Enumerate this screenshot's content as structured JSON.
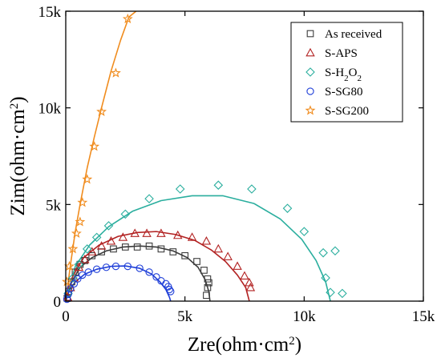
{
  "chart_data": {
    "type": "scatter",
    "xlabel": "Zre(ohm·cm²)",
    "ylabel": "Zim(ohm·cm²)",
    "xlim": [
      0,
      15000
    ],
    "ylim": [
      0,
      15000
    ],
    "xticks": [
      0,
      5000,
      10000,
      15000
    ],
    "yticks": [
      0,
      5000,
      10000,
      15000
    ],
    "xtick_labels": [
      "0",
      "5k",
      "10k",
      "15k"
    ],
    "ytick_labels": [
      "0",
      "5k",
      "10k",
      "15k"
    ],
    "legend_position": "top-right",
    "grid": false,
    "series": [
      {
        "name": "As received",
        "color": "#3c3c3c",
        "marker": "square",
        "points": [
          [
            60,
            150
          ],
          [
            120,
            500
          ],
          [
            250,
            1000
          ],
          [
            400,
            1500
          ],
          [
            600,
            1900
          ],
          [
            800,
            2100
          ],
          [
            1100,
            2350
          ],
          [
            1500,
            2550
          ],
          [
            2000,
            2700
          ],
          [
            2500,
            2800
          ],
          [
            3000,
            2800
          ],
          [
            3500,
            2850
          ],
          [
            4000,
            2700
          ],
          [
            4500,
            2550
          ],
          [
            5000,
            2350
          ],
          [
            5500,
            2050
          ],
          [
            5800,
            1600
          ],
          [
            5950,
            1150
          ],
          [
            6000,
            950
          ],
          [
            5950,
            700
          ],
          [
            5900,
            300
          ]
        ],
        "fit": [
          [
            0,
            0
          ],
          [
            250,
            1000
          ],
          [
            600,
            1750
          ],
          [
            1100,
            2250
          ],
          [
            1700,
            2600
          ],
          [
            2400,
            2800
          ],
          [
            3100,
            2850
          ],
          [
            3800,
            2800
          ],
          [
            4500,
            2600
          ],
          [
            5100,
            2250
          ],
          [
            5550,
            1750
          ],
          [
            5850,
            1100
          ],
          [
            6000,
            500
          ],
          [
            6050,
            0
          ]
        ]
      },
      {
        "name": "S-APS",
        "color": "#b22222",
        "marker": "triangle",
        "points": [
          [
            80,
            200
          ],
          [
            200,
            700
          ],
          [
            350,
            1200
          ],
          [
            550,
            1750
          ],
          [
            800,
            2150
          ],
          [
            1100,
            2550
          ],
          [
            1500,
            2850
          ],
          [
            1900,
            3100
          ],
          [
            2400,
            3300
          ],
          [
            2900,
            3500
          ],
          [
            3400,
            3500
          ],
          [
            4000,
            3500
          ],
          [
            4700,
            3400
          ],
          [
            5300,
            3300
          ],
          [
            5900,
            3100
          ],
          [
            6400,
            2700
          ],
          [
            6800,
            2300
          ],
          [
            7200,
            1800
          ],
          [
            7500,
            1300
          ],
          [
            7700,
            950
          ],
          [
            7750,
            700
          ]
        ],
        "fit": [
          [
            0,
            0
          ],
          [
            300,
            1300
          ],
          [
            750,
            2250
          ],
          [
            1400,
            2900
          ],
          [
            2200,
            3350
          ],
          [
            3000,
            3550
          ],
          [
            3800,
            3600
          ],
          [
            4600,
            3450
          ],
          [
            5400,
            3150
          ],
          [
            6100,
            2650
          ],
          [
            6700,
            2050
          ],
          [
            7200,
            1350
          ],
          [
            7550,
            700
          ],
          [
            7700,
            0
          ]
        ]
      },
      {
        "name": "S-H₂O₂",
        "color": "#2aae9e",
        "marker": "diamond",
        "points": [
          [
            100,
            400
          ],
          [
            300,
            1200
          ],
          [
            550,
            1900
          ],
          [
            900,
            2700
          ],
          [
            1300,
            3300
          ],
          [
            1800,
            3900
          ],
          [
            2500,
            4500
          ],
          [
            3500,
            5300
          ],
          [
            4800,
            5800
          ],
          [
            6400,
            6000
          ],
          [
            7800,
            5800
          ],
          [
            9300,
            4800
          ],
          [
            10000,
            3600
          ],
          [
            10800,
            2500
          ],
          [
            10900,
            1200
          ],
          [
            11100,
            450
          ],
          [
            11300,
            2600
          ],
          [
            11600,
            400
          ]
        ],
        "fit": [
          [
            0,
            0
          ],
          [
            400,
            1800
          ],
          [
            1000,
            2900
          ],
          [
            1800,
            3850
          ],
          [
            2800,
            4650
          ],
          [
            4000,
            5200
          ],
          [
            5300,
            5450
          ],
          [
            6600,
            5450
          ],
          [
            7900,
            5050
          ],
          [
            9000,
            4250
          ],
          [
            9900,
            3200
          ],
          [
            10500,
            2100
          ],
          [
            10900,
            1000
          ],
          [
            11100,
            0
          ]
        ]
      },
      {
        "name": "S-SG80",
        "color": "#1f3fd8",
        "marker": "circle",
        "points": [
          [
            50,
            100
          ],
          [
            100,
            350
          ],
          [
            200,
            650
          ],
          [
            350,
            900
          ],
          [
            500,
            1150
          ],
          [
            700,
            1350
          ],
          [
            950,
            1500
          ],
          [
            1300,
            1650
          ],
          [
            1700,
            1750
          ],
          [
            2100,
            1800
          ],
          [
            2600,
            1800
          ],
          [
            3100,
            1700
          ],
          [
            3500,
            1500
          ],
          [
            3800,
            1250
          ],
          [
            4000,
            1050
          ],
          [
            4200,
            900
          ],
          [
            4300,
            750
          ],
          [
            4350,
            600
          ],
          [
            4400,
            500
          ]
        ],
        "fit": [
          [
            0,
            0
          ],
          [
            150,
            550
          ],
          [
            400,
            1000
          ],
          [
            800,
            1400
          ],
          [
            1300,
            1650
          ],
          [
            1900,
            1800
          ],
          [
            2500,
            1820
          ],
          [
            3100,
            1700
          ],
          [
            3600,
            1400
          ],
          [
            3950,
            1000
          ],
          [
            4200,
            600
          ],
          [
            4350,
            200
          ],
          [
            4400,
            0
          ]
        ]
      },
      {
        "name": "S-SG200",
        "color": "#f08c1e",
        "marker": "star",
        "points": [
          [
            50,
            1000
          ],
          [
            150,
            1800
          ],
          [
            300,
            2700
          ],
          [
            450,
            3500
          ],
          [
            600,
            4100
          ],
          [
            700,
            5100
          ],
          [
            900,
            6300
          ],
          [
            1200,
            8000
          ],
          [
            1500,
            9800
          ],
          [
            2100,
            11800
          ],
          [
            2600,
            14600
          ]
        ],
        "fit": [
          [
            0,
            0
          ],
          [
            200,
            1900
          ],
          [
            400,
            3600
          ],
          [
            600,
            5000
          ],
          [
            900,
            6900
          ],
          [
            1200,
            8500
          ],
          [
            1500,
            10000
          ],
          [
            1900,
            11900
          ],
          [
            2300,
            13500
          ],
          [
            2650,
            14700
          ],
          [
            2950,
            15000
          ]
        ]
      }
    ]
  }
}
